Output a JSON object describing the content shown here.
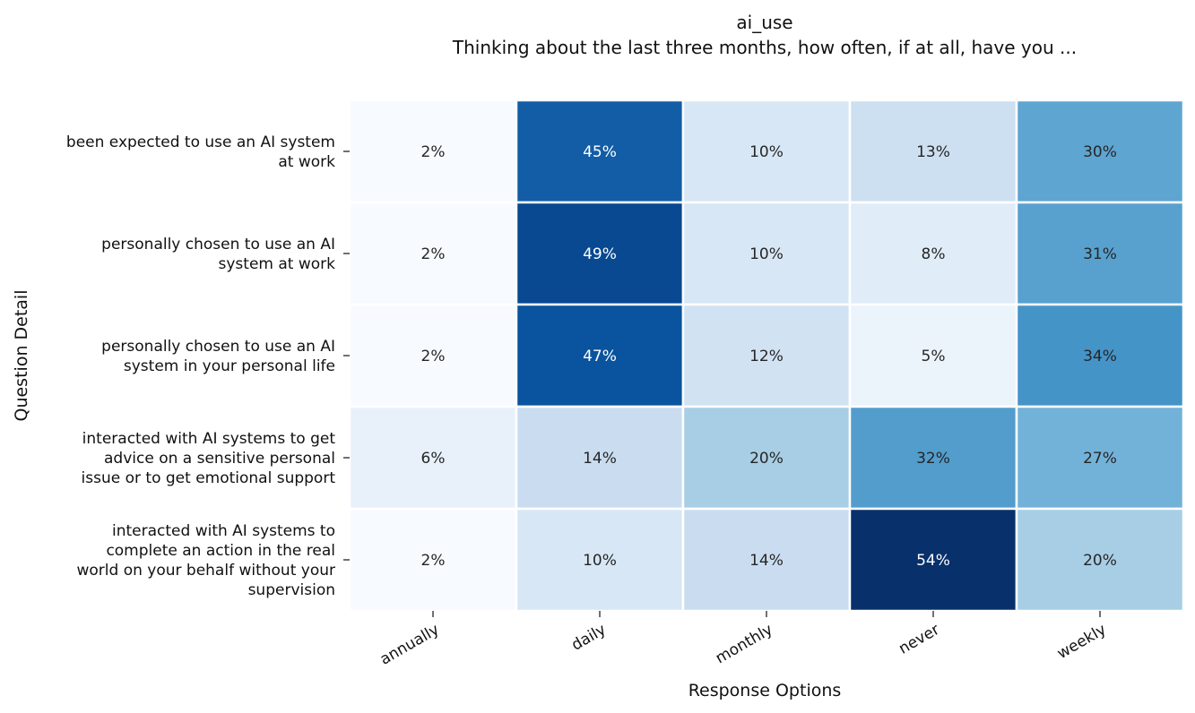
{
  "chart_data": {
    "type": "heatmap",
    "title": "ai_use",
    "subtitle": "Thinking about the last three months, how often, if at all, have you ...",
    "xlabel": "Response Options",
    "ylabel": "Question Detail",
    "colormap": "Blues",
    "value_range": [
      2,
      54
    ],
    "x": [
      "annually",
      "daily",
      "monthly",
      "never",
      "weekly"
    ],
    "y": [
      "been expected to use an AI system at work",
      "personally chosen to use an AI system at work",
      "personally chosen to use an AI system in your personal life",
      "interacted with AI systems to get advice on a sensitive personal issue or to get emotional support",
      "interacted with AI systems to complete an action in the real world on your behalf without your supervision"
    ],
    "values": [
      [
        2,
        45,
        10,
        13,
        30
      ],
      [
        2,
        49,
        10,
        8,
        31
      ],
      [
        2,
        47,
        12,
        5,
        34
      ],
      [
        6,
        14,
        20,
        32,
        27
      ],
      [
        2,
        10,
        14,
        54,
        20
      ]
    ],
    "value_format": "{v}%"
  }
}
